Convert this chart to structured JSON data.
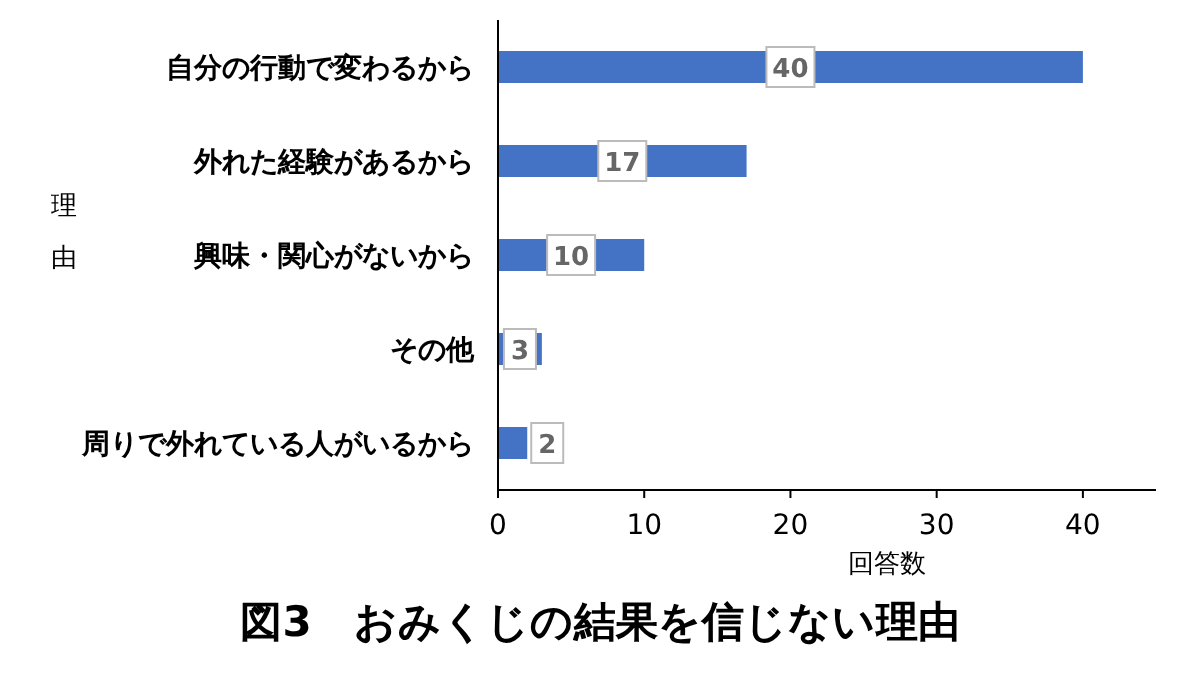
{
  "chart_data": {
    "type": "bar",
    "orientation": "horizontal",
    "title": "図3　おみくじの結果を信じない理由",
    "xlabel": "回答数",
    "ylabel": "理由",
    "categories": [
      "自分の行動で変わるから",
      "外れた経験があるから",
      "興味・関心がないから",
      "その他",
      "周りで外れている人がいるから"
    ],
    "values": [
      40,
      17,
      10,
      3,
      2
    ],
    "color": "#4472c4",
    "xlim": [
      0,
      45
    ],
    "xticks": [
      0,
      10,
      20,
      30,
      40
    ],
    "data_labels": true
  }
}
